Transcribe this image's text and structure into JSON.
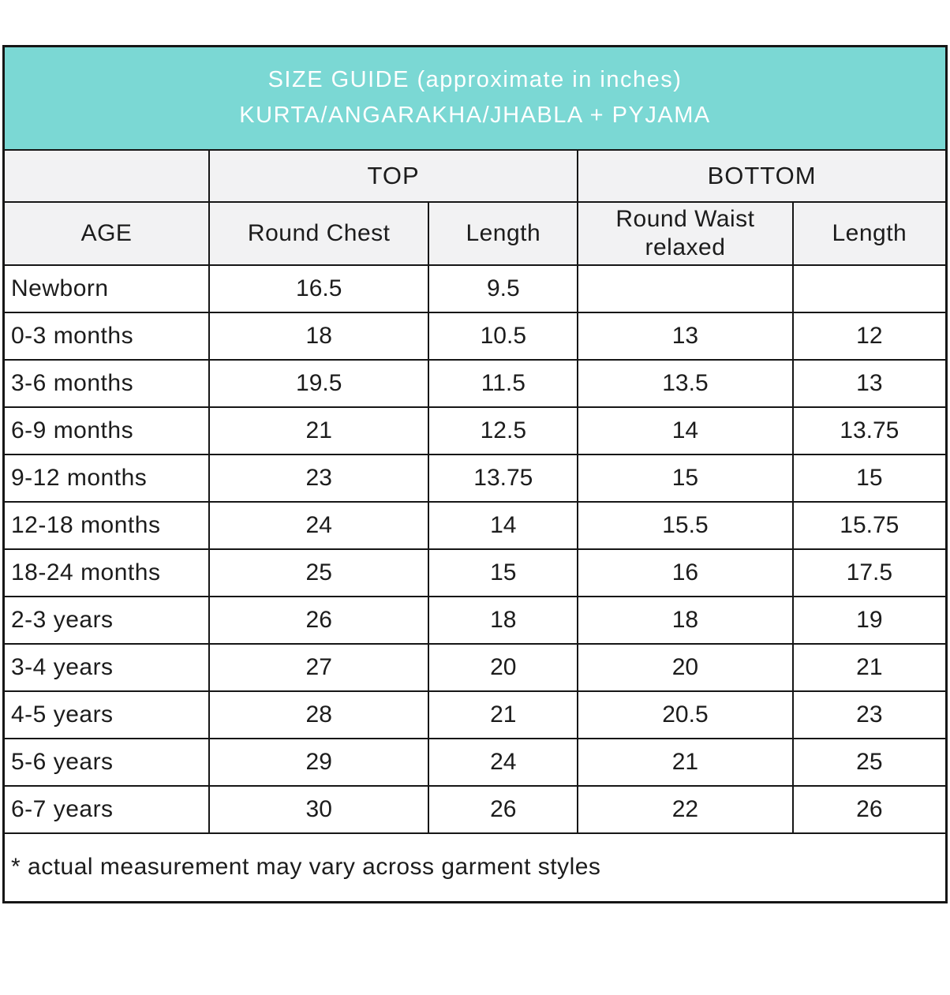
{
  "title": {
    "line1": "SIZE GUIDE (approximate in inches)",
    "line2": "KURTA/ANGARAKHA/JHABLA + PYJAMA"
  },
  "groups": {
    "top": "TOP",
    "bottom": "BOTTOM"
  },
  "columns": {
    "age": "AGE",
    "round_chest": "Round Chest",
    "top_length": "Length",
    "round_waist_line1": "Round Waist",
    "round_waist_line2": "relaxed",
    "bottom_length": "Length"
  },
  "rows": [
    {
      "age": "Newborn",
      "round_chest": "16.5",
      "top_length": "9.5",
      "round_waist": "",
      "bottom_length": ""
    },
    {
      "age": "0-3 months",
      "round_chest": "18",
      "top_length": "10.5",
      "round_waist": "13",
      "bottom_length": "12"
    },
    {
      "age": "3-6 months",
      "round_chest": "19.5",
      "top_length": "11.5",
      "round_waist": "13.5",
      "bottom_length": "13"
    },
    {
      "age": "6-9 months",
      "round_chest": "21",
      "top_length": "12.5",
      "round_waist": "14",
      "bottom_length": "13.75"
    },
    {
      "age": "9-12 months",
      "round_chest": "23",
      "top_length": "13.75",
      "round_waist": "15",
      "bottom_length": "15"
    },
    {
      "age": "12-18 months",
      "round_chest": "24",
      "top_length": "14",
      "round_waist": "15.5",
      "bottom_length": "15.75"
    },
    {
      "age": "18-24 months",
      "round_chest": "25",
      "top_length": "15",
      "round_waist": "16",
      "bottom_length": "17.5"
    },
    {
      "age": "2-3 years",
      "round_chest": "26",
      "top_length": "18",
      "round_waist": "18",
      "bottom_length": "19"
    },
    {
      "age": "3-4 years",
      "round_chest": "27",
      "top_length": "20",
      "round_waist": "20",
      "bottom_length": "21"
    },
    {
      "age": "4-5 years",
      "round_chest": "28",
      "top_length": "21",
      "round_waist": "20.5",
      "bottom_length": "23"
    },
    {
      "age": "5-6 years",
      "round_chest": "29",
      "top_length": "24",
      "round_waist": "21",
      "bottom_length": "25"
    },
    {
      "age": "6-7 years",
      "round_chest": "30",
      "top_length": "26",
      "round_waist": "22",
      "bottom_length": "26"
    }
  ],
  "footnote": "* actual measurement may vary across garment styles",
  "colors": {
    "header_teal": "#7bd8d4",
    "subheader_gray": "#f2f2f3",
    "border": "#161616",
    "title_text": "#ffffff",
    "body_text": "#1c1c1c"
  }
}
